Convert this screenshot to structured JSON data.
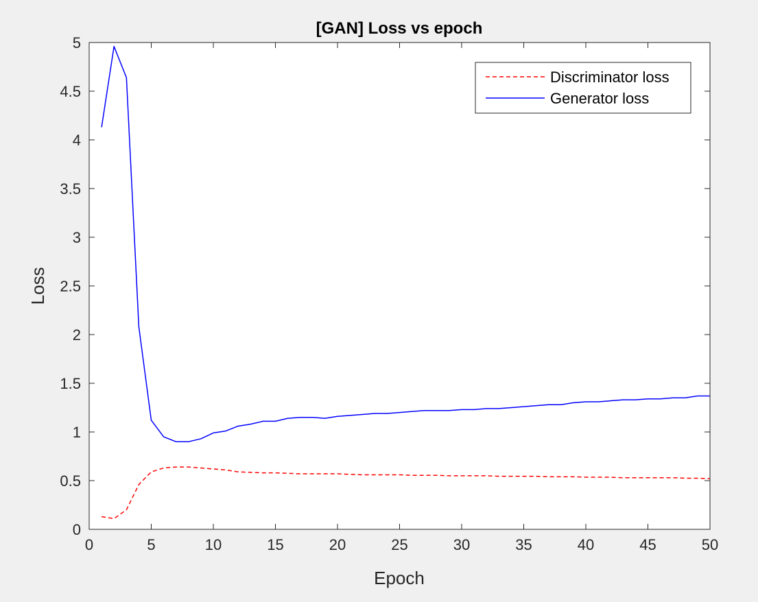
{
  "colors": {
    "figure_bg": "#f0f0f0",
    "axes_bg": "#ffffff",
    "axis_color": "#262626",
    "discriminator": "#ff0000",
    "generator": "#0000ff"
  },
  "chart_data": {
    "type": "line",
    "title": "[GAN] Loss vs epoch",
    "xlabel": "Epoch",
    "ylabel": "Loss",
    "xlim": [
      0,
      50
    ],
    "ylim": [
      0,
      5
    ],
    "xticks": [
      0,
      5,
      10,
      15,
      20,
      25,
      30,
      35,
      40,
      45,
      50
    ],
    "yticks": [
      0,
      0.5,
      1,
      1.5,
      2,
      2.5,
      3,
      3.5,
      4,
      4.5,
      5
    ],
    "grid": false,
    "legend_position": "top-right",
    "series": [
      {
        "name": "Discriminator loss",
        "line_style": "dashed",
        "color": "#ff0000",
        "x": [
          1,
          2,
          3,
          4,
          5,
          6,
          7,
          8,
          9,
          10,
          11,
          12,
          13,
          14,
          15,
          16,
          17,
          18,
          19,
          20,
          21,
          22,
          23,
          24,
          25,
          26,
          27,
          28,
          29,
          30,
          31,
          32,
          33,
          34,
          35,
          36,
          37,
          38,
          39,
          40,
          41,
          42,
          43,
          44,
          45,
          46,
          47,
          48,
          49,
          50
        ],
        "values": [
          0.13,
          0.11,
          0.2,
          0.46,
          0.59,
          0.63,
          0.64,
          0.64,
          0.63,
          0.62,
          0.61,
          0.59,
          0.585,
          0.58,
          0.58,
          0.575,
          0.57,
          0.57,
          0.57,
          0.57,
          0.565,
          0.56,
          0.56,
          0.56,
          0.56,
          0.555,
          0.555,
          0.555,
          0.55,
          0.55,
          0.55,
          0.55,
          0.545,
          0.545,
          0.545,
          0.545,
          0.54,
          0.54,
          0.54,
          0.535,
          0.535,
          0.535,
          0.53,
          0.53,
          0.53,
          0.53,
          0.53,
          0.525,
          0.525,
          0.52
        ]
      },
      {
        "name": "Generator loss",
        "line_style": "solid",
        "color": "#0000ff",
        "x": [
          1,
          2,
          3,
          4,
          5,
          6,
          7,
          8,
          9,
          10,
          11,
          12,
          13,
          14,
          15,
          16,
          17,
          18,
          19,
          20,
          21,
          22,
          23,
          24,
          25,
          26,
          27,
          28,
          29,
          30,
          31,
          32,
          33,
          34,
          35,
          36,
          37,
          38,
          39,
          40,
          41,
          42,
          43,
          44,
          45,
          46,
          47,
          48,
          49,
          50
        ],
        "values": [
          4.13,
          4.96,
          4.64,
          2.08,
          1.12,
          0.95,
          0.9,
          0.9,
          0.93,
          0.99,
          1.01,
          1.06,
          1.08,
          1.11,
          1.11,
          1.14,
          1.15,
          1.15,
          1.14,
          1.16,
          1.17,
          1.18,
          1.19,
          1.19,
          1.2,
          1.21,
          1.22,
          1.22,
          1.22,
          1.23,
          1.23,
          1.24,
          1.24,
          1.25,
          1.26,
          1.27,
          1.28,
          1.28,
          1.3,
          1.31,
          1.31,
          1.32,
          1.33,
          1.33,
          1.34,
          1.34,
          1.35,
          1.35,
          1.37,
          1.37
        ]
      }
    ]
  }
}
